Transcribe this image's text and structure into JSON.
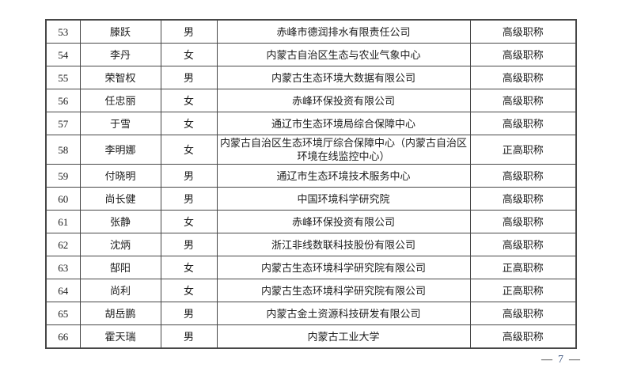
{
  "page": {
    "footer": {
      "dash": "—",
      "page_number": "7"
    }
  },
  "colors": {
    "table_border": "#474747",
    "text": "#1c1c1c",
    "page_number": "#3a527d",
    "paper": "#ffffff"
  },
  "table": {
    "columns": [
      "no",
      "name",
      "gender",
      "organization",
      "title"
    ],
    "rows": [
      {
        "no": "53",
        "name": "滕跃",
        "gender": "男",
        "organization": "赤峰市德润排水有限责任公司",
        "title": "高级职称"
      },
      {
        "no": "54",
        "name": "李丹",
        "gender": "女",
        "organization": "内蒙古自治区生态与农业气象中心",
        "title": "高级职称"
      },
      {
        "no": "55",
        "name": "荣智权",
        "gender": "男",
        "organization": "内蒙古生态环境大数据有限公司",
        "title": "高级职称"
      },
      {
        "no": "56",
        "name": "任忠丽",
        "gender": "女",
        "organization": "赤峰环保投资有限公司",
        "title": "高级职称"
      },
      {
        "no": "57",
        "name": "于雪",
        "gender": "女",
        "organization": "通辽市生态环境局综合保障中心",
        "title": "高级职称"
      },
      {
        "no": "58",
        "name": "李明娜",
        "gender": "女",
        "organization": "内蒙古自治区生态环境厅综合保障中心（内蒙古自治区环境在线监控中心）",
        "title": "正高职称"
      },
      {
        "no": "59",
        "name": "付晓明",
        "gender": "男",
        "organization": "通辽市生态环境技术服务中心",
        "title": "高级职称"
      },
      {
        "no": "60",
        "name": "尚长健",
        "gender": "男",
        "organization": "中国环境科学研究院",
        "title": "高级职称"
      },
      {
        "no": "61",
        "name": "张静",
        "gender": "女",
        "organization": "赤峰环保投资有限公司",
        "title": "高级职称"
      },
      {
        "no": "62",
        "name": "沈炳",
        "gender": "男",
        "organization": "浙江非线数联科技股份有限公司",
        "title": "高级职称"
      },
      {
        "no": "63",
        "name": "郜阳",
        "gender": "女",
        "organization": "内蒙古生态环境科学研究院有限公司",
        "title": "正高职称"
      },
      {
        "no": "64",
        "name": "尚利",
        "gender": "女",
        "organization": "内蒙古生态环境科学研究院有限公司",
        "title": "正高职称"
      },
      {
        "no": "65",
        "name": "胡岳鹏",
        "gender": "男",
        "organization": "内蒙古金土资源科技研发有限公司",
        "title": "高级职称"
      },
      {
        "no": "66",
        "name": "霍天瑞",
        "gender": "男",
        "organization": "内蒙古工业大学",
        "title": "高级职称"
      }
    ]
  }
}
